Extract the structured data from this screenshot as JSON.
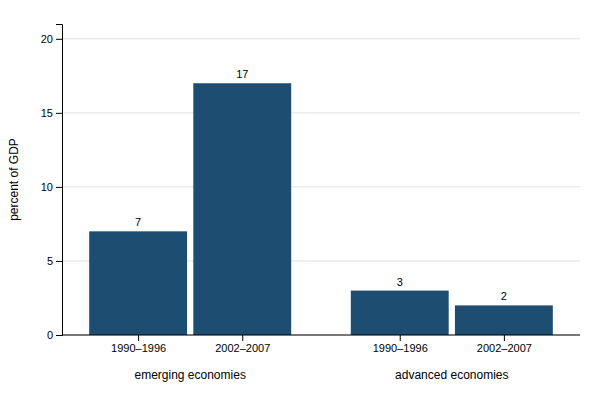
{
  "chart_data": {
    "type": "bar",
    "ylabel": "percent of GDP",
    "categories": [
      "1990–1996",
      "2002–2007",
      "1990–1996",
      "2002–2007"
    ],
    "groups": [
      "emerging economies",
      "emerging economies",
      "advanced economies",
      "advanced economies"
    ],
    "values": [
      7,
      17,
      3,
      2
    ],
    "color": "#1e4d72",
    "ylim": [
      0,
      21
    ],
    "yticks": [
      0,
      5,
      10,
      15,
      20
    ],
    "grid": true,
    "data_labels": true
  }
}
